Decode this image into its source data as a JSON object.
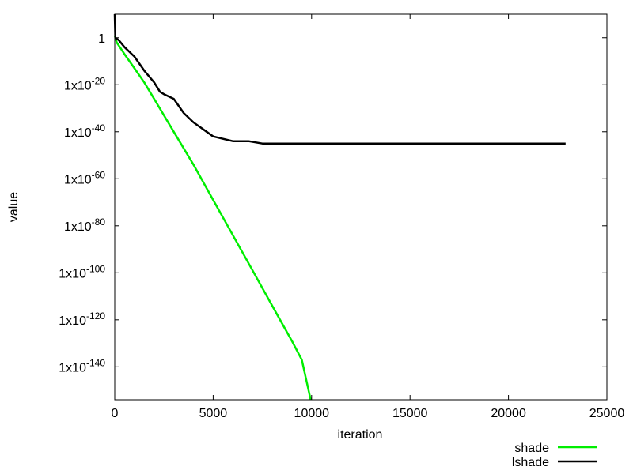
{
  "chart_data": {
    "type": "line",
    "title": "",
    "xlabel": "iteration",
    "ylabel": "value",
    "xlim": [
      0,
      25000
    ],
    "ylog": true,
    "ylim_log10": [
      -154,
      10
    ],
    "grid": false,
    "legend_position": "below-right",
    "x_ticks": [
      {
        "value": 0,
        "label": "0"
      },
      {
        "value": 5000,
        "label": "5000"
      },
      {
        "value": 10000,
        "label": "10000"
      },
      {
        "value": 15000,
        "label": "15000"
      },
      {
        "value": 20000,
        "label": "20000"
      },
      {
        "value": 25000,
        "label": "25000"
      }
    ],
    "y_ticks": [
      {
        "log10": 0,
        "base": "1",
        "exp": ""
      },
      {
        "log10": -20,
        "base": "1x10",
        "exp": "-20"
      },
      {
        "log10": -40,
        "base": "1x10",
        "exp": "-40"
      },
      {
        "log10": -60,
        "base": "1x10",
        "exp": "-60"
      },
      {
        "log10": -80,
        "base": "1x10",
        "exp": "-80"
      },
      {
        "log10": -100,
        "base": "1x10",
        "exp": "-100"
      },
      {
        "log10": -120,
        "base": "1x10",
        "exp": "-120"
      },
      {
        "log10": -140,
        "base": "1x10",
        "exp": "-140"
      }
    ],
    "series": [
      {
        "name": "shade",
        "color": "#00ee00",
        "points": [
          [
            0,
            1
          ],
          [
            100,
            -2
          ],
          [
            500,
            -7
          ],
          [
            1000,
            -13
          ],
          [
            1500,
            -19
          ],
          [
            2000,
            -26
          ],
          [
            2500,
            -33
          ],
          [
            3000,
            -40
          ],
          [
            4000,
            -54
          ],
          [
            5000,
            -69
          ],
          [
            6000,
            -84
          ],
          [
            7000,
            -99
          ],
          [
            8000,
            -114
          ],
          [
            9000,
            -129
          ],
          [
            9500,
            -137
          ],
          [
            9950,
            -154
          ]
        ]
      },
      {
        "name": "lshade",
        "color": "#000000",
        "points": [
          [
            0,
            10
          ],
          [
            30,
            0
          ],
          [
            200,
            -1
          ],
          [
            500,
            -4
          ],
          [
            1000,
            -8
          ],
          [
            1500,
            -14
          ],
          [
            2000,
            -19
          ],
          [
            2300,
            -23
          ],
          [
            2500,
            -24
          ],
          [
            3000,
            -26
          ],
          [
            3500,
            -32
          ],
          [
            4000,
            -36
          ],
          [
            4500,
            -39
          ],
          [
            5000,
            -42
          ],
          [
            5500,
            -43
          ],
          [
            6000,
            -44
          ],
          [
            6800,
            -44
          ],
          [
            7500,
            -45
          ],
          [
            10000,
            -45
          ],
          [
            15000,
            -45
          ],
          [
            20000,
            -45
          ],
          [
            22900,
            -45
          ]
        ]
      }
    ]
  }
}
